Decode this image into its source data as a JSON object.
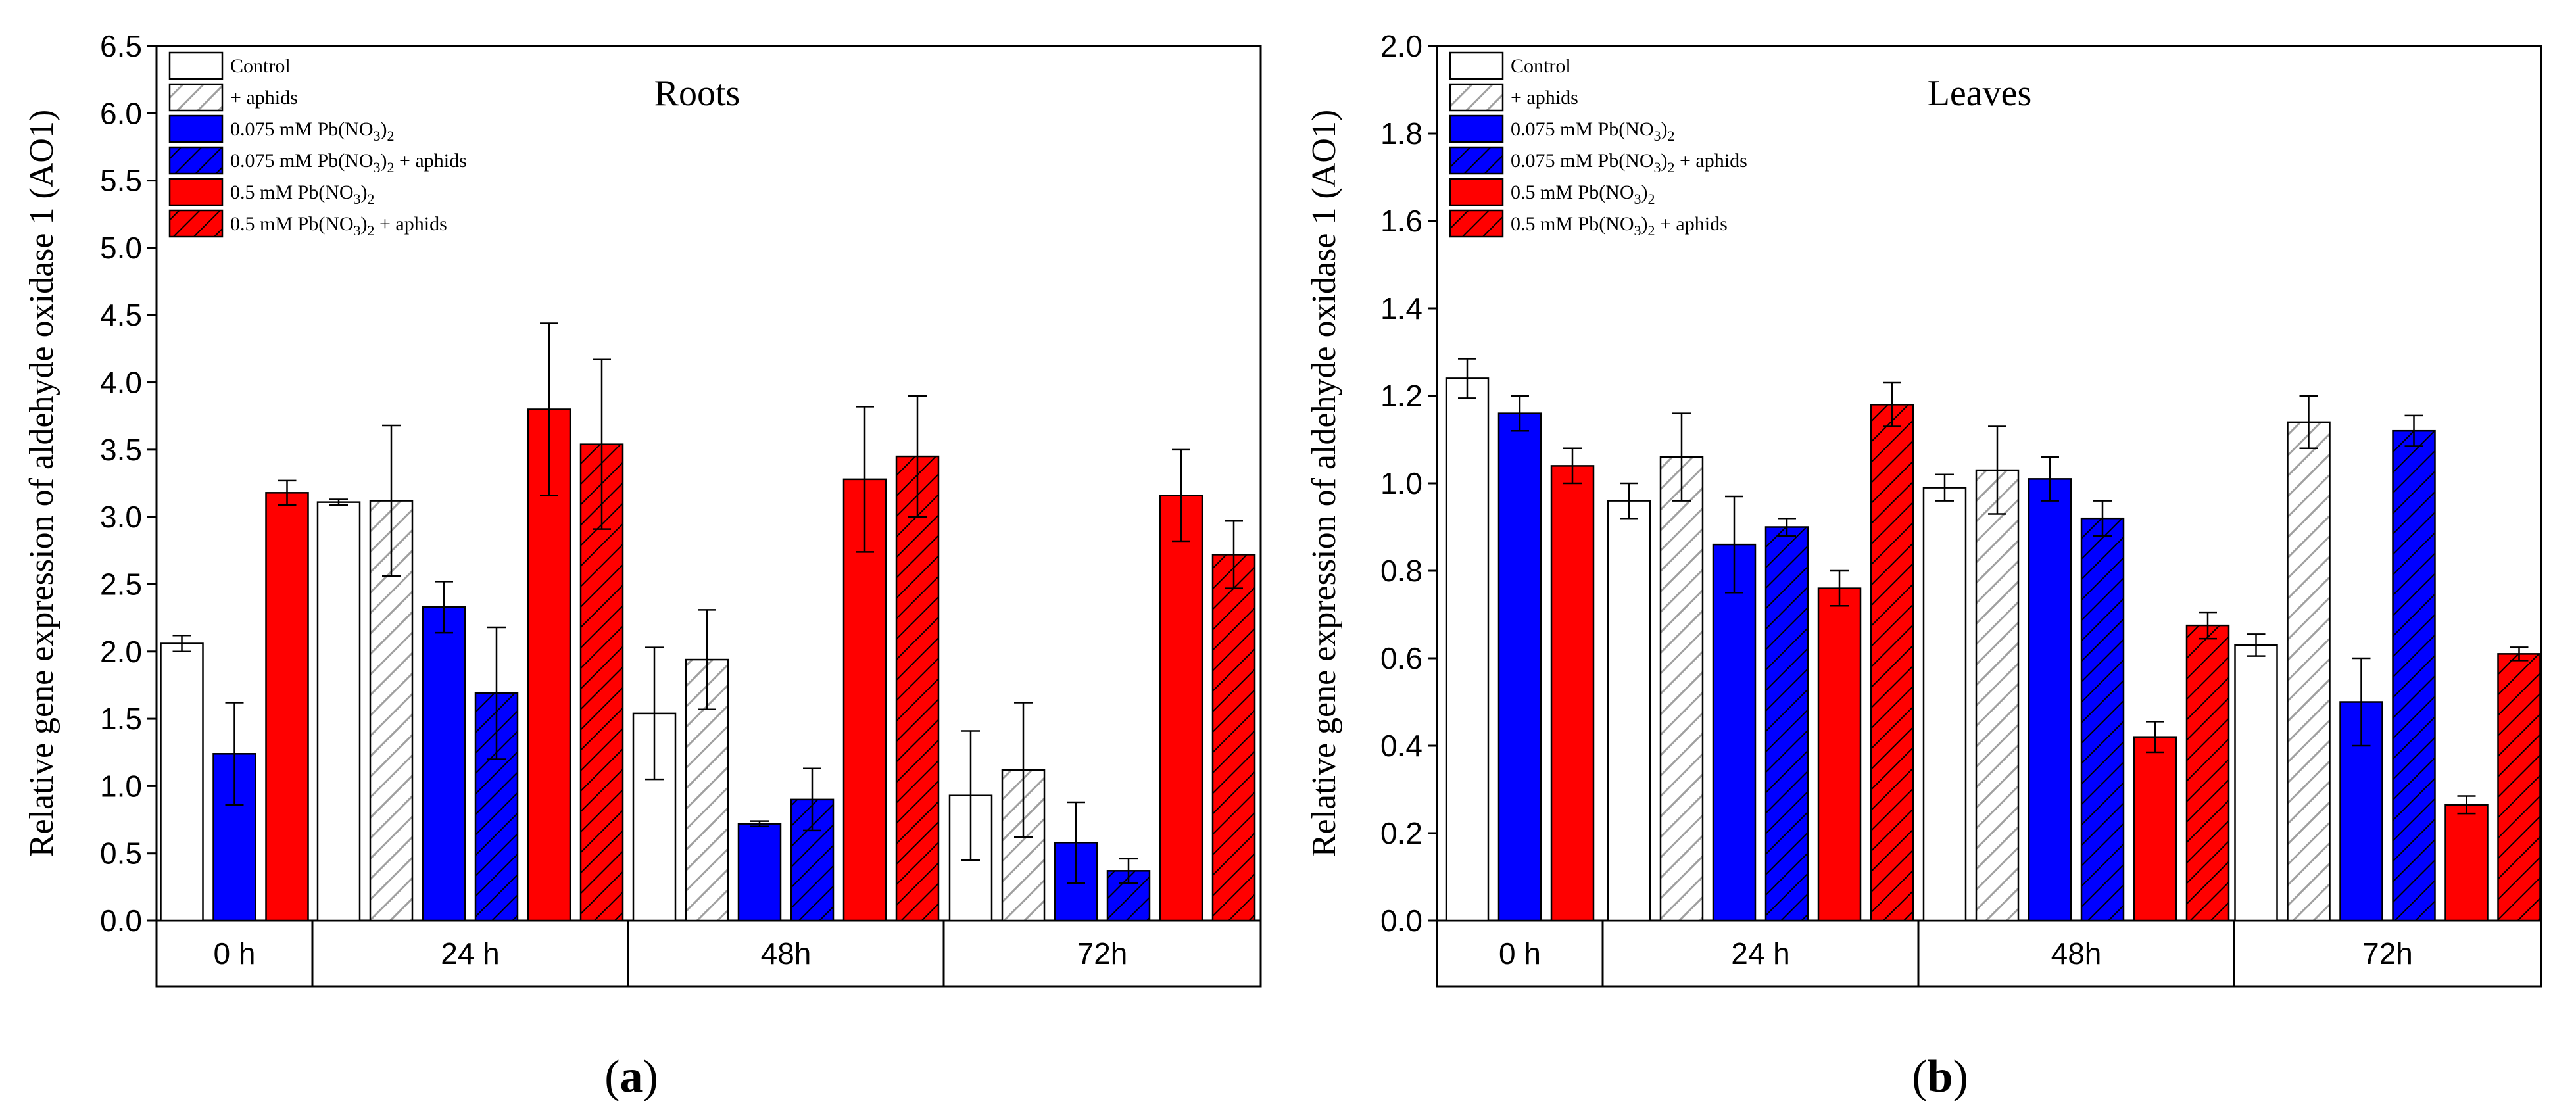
{
  "colors": {
    "control": "#ffffff",
    "blue": "#0000ff",
    "red": "#ff0000",
    "hatch_gray": "#a0a0a0",
    "hatch_dark": "#000000",
    "stroke": "#000000"
  },
  "legend": [
    {
      "series": "Control",
      "text": "Control"
    },
    {
      "series": "aphids",
      "text": "+ aphids"
    },
    {
      "series": "lowPb",
      "pre": "0.075 mM Pb(NO",
      "sub": "3",
      "mid": ")",
      "sub2": "2",
      "post": ""
    },
    {
      "series": "lowPbAphids",
      "pre": "0.075 mM Pb(NO",
      "sub": "3",
      "mid": ")",
      "sub2": "2",
      "post": " +  aphids"
    },
    {
      "series": "highPb",
      "pre": "0.5 mM Pb(NO",
      "sub": "3",
      "mid": ")",
      "sub2": "2",
      "post": ""
    },
    {
      "series": "highPbAphids",
      "pre": "0.5 mM Pb(NO",
      "sub": "3",
      "mid": ")",
      "sub2": "2",
      "post": " + aphids"
    }
  ],
  "chart_data": [
    {
      "type": "bar",
      "panel": "(a)",
      "panel_letter": "a",
      "title": "Roots",
      "ylabel": "Relative gene expression of aldehyde oxidase 1 (AO1)",
      "ylim": [
        0,
        6.5
      ],
      "yticks": [
        "0.0",
        "0.5",
        "1.0",
        "1.5",
        "2.0",
        "2.5",
        "3.0",
        "3.5",
        "4.0",
        "4.5",
        "5.0",
        "5.5",
        "6.0",
        "6.5"
      ],
      "groups": [
        {
          "label": "0 h",
          "bars": [
            {
              "series": "Control",
              "value": 2.06,
              "error": 0.06
            },
            {
              "series": "lowPb",
              "value": 1.24,
              "error": 0.38
            },
            {
              "series": "highPb",
              "value": 3.18,
              "error": 0.09
            }
          ]
        },
        {
          "label": "24 h",
          "bars": [
            {
              "series": "Control",
              "value": 3.11,
              "error": 0.02
            },
            {
              "series": "aphids",
              "value": 3.12,
              "error": 0.56
            },
            {
              "series": "lowPb",
              "value": 2.33,
              "error": 0.19
            },
            {
              "series": "lowPbAphids",
              "value": 1.69,
              "error": 0.49
            },
            {
              "series": "highPb",
              "value": 3.8,
              "error": 0.64
            },
            {
              "series": "highPbAphids",
              "value": 3.54,
              "error": 0.63
            }
          ]
        },
        {
          "label": "48h",
          "bars": [
            {
              "series": "Control",
              "value": 1.54,
              "error": 0.49
            },
            {
              "series": "aphids",
              "value": 1.94,
              "error": 0.37
            },
            {
              "series": "lowPb",
              "value": 0.72,
              "error": 0.02
            },
            {
              "series": "lowPbAphids",
              "value": 0.9,
              "error": 0.23
            },
            {
              "series": "highPb",
              "value": 3.28,
              "error": 0.54
            },
            {
              "series": "highPbAphids",
              "value": 3.45,
              "error": 0.45
            }
          ]
        },
        {
          "label": "72h",
          "bars": [
            {
              "series": "Control",
              "value": 0.93,
              "error": 0.48
            },
            {
              "series": "aphids",
              "value": 1.12,
              "error": 0.5
            },
            {
              "series": "lowPb",
              "value": 0.58,
              "error": 0.3
            },
            {
              "series": "lowPbAphids",
              "value": 0.37,
              "error": 0.09
            },
            {
              "series": "highPb",
              "value": 3.16,
              "error": 0.34
            },
            {
              "series": "highPbAphids",
              "value": 2.72,
              "error": 0.25
            }
          ]
        }
      ]
    },
    {
      "type": "bar",
      "panel": "(b)",
      "panel_letter": "b",
      "title": "Leaves",
      "ylabel": "Relative gene expression of aldehyde oxidase 1 (AO1)",
      "ylim": [
        0,
        2.0
      ],
      "yticks": [
        "0.0",
        "0.2",
        "0.4",
        "0.6",
        "0.8",
        "1.0",
        "1.2",
        "1.4",
        "1.6",
        "1.8",
        "2.0"
      ],
      "groups": [
        {
          "label": "0 h",
          "bars": [
            {
              "series": "Control",
              "value": 1.24,
              "error": 0.045
            },
            {
              "series": "lowPb",
              "value": 1.16,
              "error": 0.04
            },
            {
              "series": "highPb",
              "value": 1.04,
              "error": 0.04
            }
          ]
        },
        {
          "label": "24 h",
          "bars": [
            {
              "series": "Control",
              "value": 0.96,
              "error": 0.04
            },
            {
              "series": "aphids",
              "value": 1.06,
              "error": 0.1
            },
            {
              "series": "lowPb",
              "value": 0.86,
              "error": 0.11
            },
            {
              "series": "lowPbAphids",
              "value": 0.9,
              "error": 0.02
            },
            {
              "series": "highPb",
              "value": 0.76,
              "error": 0.04
            },
            {
              "series": "highPbAphids",
              "value": 1.18,
              "error": 0.05
            }
          ]
        },
        {
          "label": "48h",
          "bars": [
            {
              "series": "Control",
              "value": 0.99,
              "error": 0.03
            },
            {
              "series": "aphids",
              "value": 1.03,
              "error": 0.1
            },
            {
              "series": "lowPb",
              "value": 1.01,
              "error": 0.05
            },
            {
              "series": "lowPbAphids",
              "value": 0.92,
              "error": 0.04
            },
            {
              "series": "highPb",
              "value": 0.42,
              "error": 0.035
            },
            {
              "series": "highPbAphids",
              "value": 0.675,
              "error": 0.03
            }
          ]
        },
        {
          "label": "72h",
          "bars": [
            {
              "series": "Control",
              "value": 0.63,
              "error": 0.025
            },
            {
              "series": "aphids",
              "value": 1.14,
              "error": 0.06
            },
            {
              "series": "lowPb",
              "value": 0.5,
              "error": 0.1
            },
            {
              "series": "lowPbAphids",
              "value": 1.12,
              "error": 0.035
            },
            {
              "series": "highPb",
              "value": 0.265,
              "error": 0.02
            },
            {
              "series": "highPbAphids",
              "value": 0.61,
              "error": 0.015
            }
          ]
        }
      ]
    }
  ]
}
